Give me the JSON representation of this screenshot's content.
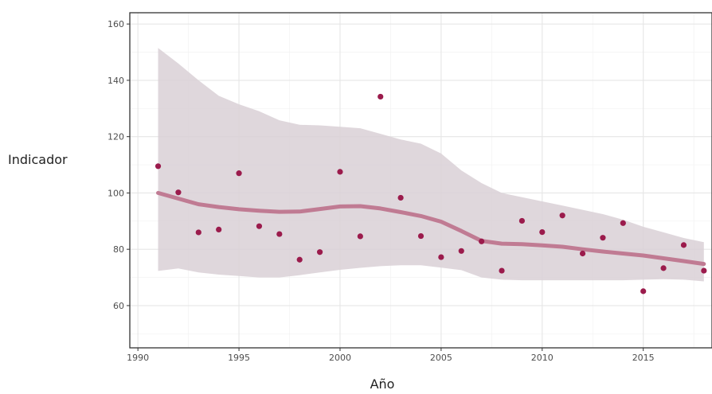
{
  "chart_data": {
    "type": "scatter",
    "xlabel": "Año",
    "ylabel": "Indicador",
    "xlim": [
      1989.6,
      2018.4
    ],
    "ylim": [
      45,
      164
    ],
    "x_ticks": [
      1990,
      1995,
      2000,
      2005,
      2010,
      2015
    ],
    "y_ticks": [
      60,
      80,
      100,
      120,
      140,
      160
    ],
    "grid": true,
    "legend": "none",
    "colors": {
      "points": "#9b1b4c",
      "trend_line": "#c07b93",
      "ribbon": "#d9d0d6",
      "grid_major": "#e6e6e6",
      "grid_minor": "#f2f2f2",
      "panel_border": "#333333"
    },
    "points": [
      {
        "x": 1991,
        "y": 109.5
      },
      {
        "x": 1992,
        "y": 100.2
      },
      {
        "x": 1993,
        "y": 86.0
      },
      {
        "x": 1994,
        "y": 87.0
      },
      {
        "x": 1995,
        "y": 107.0
      },
      {
        "x": 1996,
        "y": 88.2
      },
      {
        "x": 1997,
        "y": 85.4
      },
      {
        "x": 1998,
        "y": 76.3
      },
      {
        "x": 1999,
        "y": 79.0
      },
      {
        "x": 2000,
        "y": 107.5
      },
      {
        "x": 2001,
        "y": 84.6
      },
      {
        "x": 2002,
        "y": 134.2
      },
      {
        "x": 2003,
        "y": 98.3
      },
      {
        "x": 2004,
        "y": 84.7
      },
      {
        "x": 2005,
        "y": 77.2
      },
      {
        "x": 2006,
        "y": 79.4
      },
      {
        "x": 2007,
        "y": 82.8
      },
      {
        "x": 2008,
        "y": 72.4
      },
      {
        "x": 2009,
        "y": 90.1
      },
      {
        "x": 2010,
        "y": 86.1
      },
      {
        "x": 2011,
        "y": 92.0
      },
      {
        "x": 2012,
        "y": 78.5
      },
      {
        "x": 2013,
        "y": 84.1
      },
      {
        "x": 2014,
        "y": 89.3
      },
      {
        "x": 2015,
        "y": 65.1
      },
      {
        "x": 2016,
        "y": 73.3
      },
      {
        "x": 2017,
        "y": 81.5
      },
      {
        "x": 2018,
        "y": 72.4
      }
    ],
    "trend": {
      "x": [
        1991,
        1992,
        1993,
        1994,
        1995,
        1996,
        1997,
        1998,
        1999,
        2000,
        2001,
        2002,
        2003,
        2004,
        2005,
        2006,
        2007,
        2008,
        2009,
        2010,
        2011,
        2012,
        2013,
        2014,
        2015,
        2016,
        2017,
        2018
      ],
      "y": [
        100.0,
        98.0,
        96.0,
        95.0,
        94.2,
        93.7,
        93.3,
        93.4,
        94.3,
        95.2,
        95.3,
        94.5,
        93.2,
        91.8,
        89.8,
        86.5,
        83.0,
        82.0,
        81.8,
        81.4,
        80.9,
        80.0,
        79.2,
        78.5,
        77.8,
        76.8,
        75.8,
        74.8
      ],
      "lower": [
        72.3,
        73.2,
        71.8,
        71.0,
        70.5,
        70.0,
        70.0,
        70.8,
        71.8,
        72.7,
        73.4,
        74.0,
        74.3,
        74.3,
        73.5,
        72.6,
        70.0,
        69.2,
        69.0,
        69.0,
        69.0,
        69.0,
        69.0,
        69.0,
        69.2,
        69.4,
        69.2,
        68.6
      ],
      "upper": [
        151.5,
        146.0,
        140.0,
        134.5,
        131.5,
        129.0,
        125.8,
        124.2,
        124.0,
        123.5,
        123.0,
        121.0,
        119.0,
        117.5,
        114.0,
        108.0,
        103.5,
        100.0,
        98.5,
        97.0,
        95.5,
        94.0,
        92.5,
        90.5,
        88.0,
        86.0,
        84.0,
        82.5
      ]
    }
  }
}
